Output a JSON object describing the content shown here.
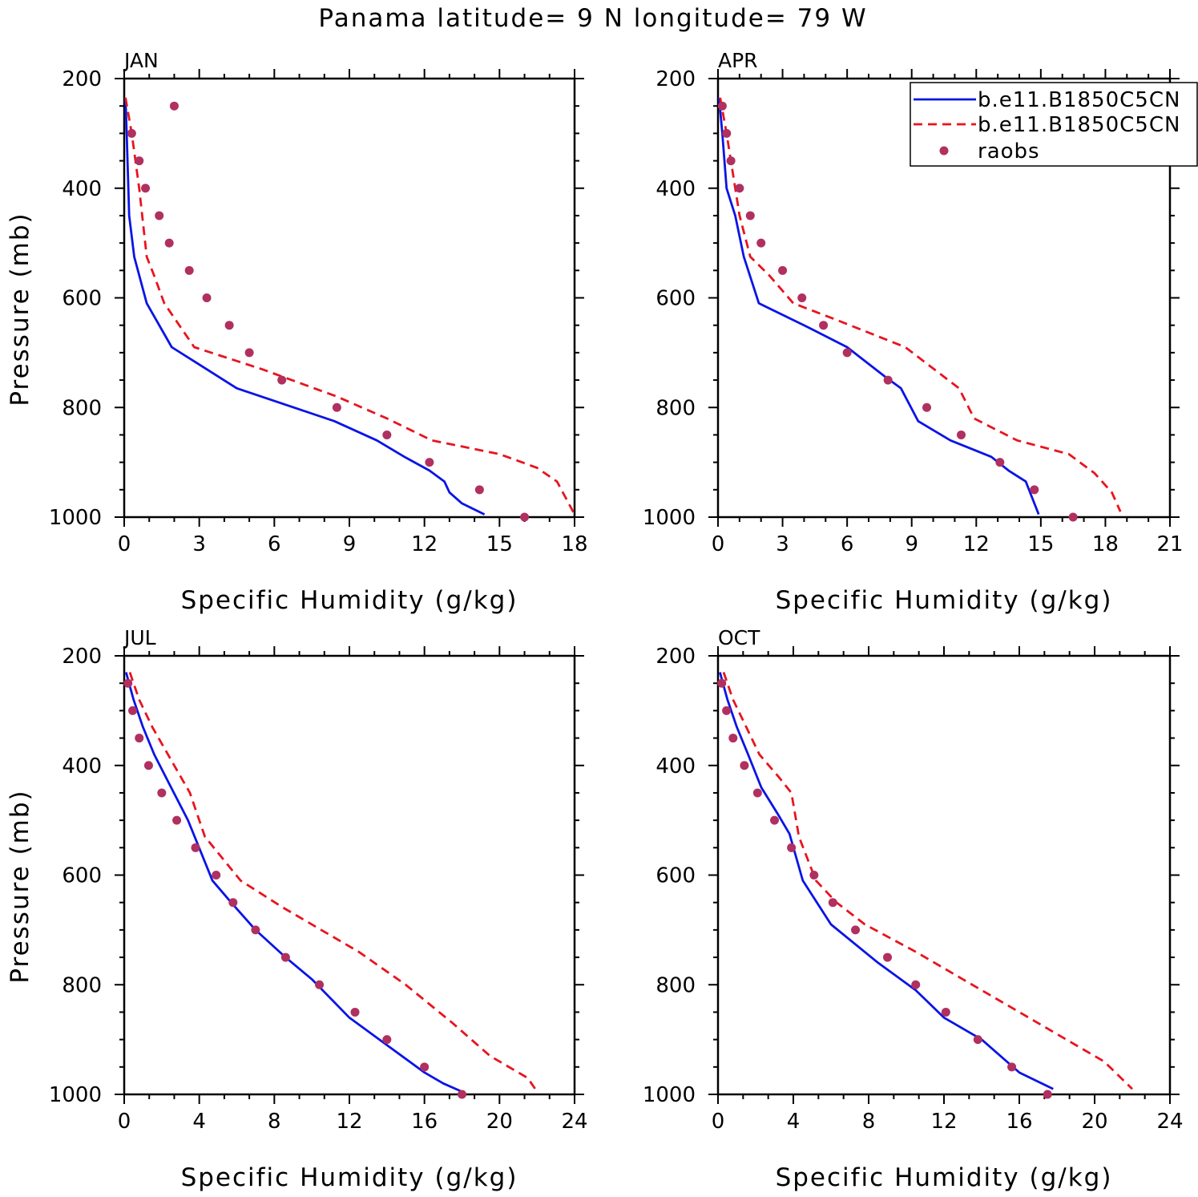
{
  "figure": {
    "title": "Panama  latitude= 9 N longitude= 79 W"
  },
  "legend": {
    "items": [
      {
        "label": "b.e11.B1850C5CN",
        "color": "#0a14e6",
        "style": "solid"
      },
      {
        "label": "b.e11.B1850C5CN",
        "color": "#e8141e",
        "style": "dashed"
      },
      {
        "label": "raobs",
        "color": "#b03060",
        "style": "marker"
      }
    ]
  },
  "chart_data": [
    {
      "type": "line",
      "panel_label": "JAN",
      "xlabel": "Specific Humidity (g/kg)",
      "ylabel": "Pressure (mb)",
      "xlim": [
        0,
        18
      ],
      "ylim": [
        1000,
        200
      ],
      "x_ticks": [
        0,
        3,
        6,
        9,
        12,
        15,
        18
      ],
      "y_ticks": [
        200,
        400,
        600,
        800,
        1000
      ],
      "series": [
        {
          "name": "b.e11.B1850C5CN",
          "color": "#0a14e6",
          "style": "solid",
          "x": [
            0.05,
            0.1,
            0.2,
            0.4,
            0.9,
            1.9,
            4.5,
            8.4,
            10.1,
            11.2,
            12.2,
            12.8,
            13.0,
            13.5,
            14.4
          ],
          "y": [
            235,
            300,
            450,
            525,
            610,
            690,
            765,
            825,
            860,
            890,
            915,
            935,
            955,
            975,
            995
          ]
        },
        {
          "name": "b.e11.B1850C5CN",
          "color": "#e8141e",
          "style": "dashed",
          "x": [
            0.05,
            0.3,
            0.6,
            0.9,
            1.2,
            1.6,
            2.8,
            5.5,
            8.5,
            10.5,
            12.3,
            15.0,
            16.5,
            17.3,
            18.0
          ],
          "y": [
            235,
            300,
            400,
            525,
            560,
            610,
            690,
            730,
            780,
            820,
            860,
            885,
            910,
            935,
            995
          ]
        },
        {
          "name": "raobs",
          "color": "#b03060",
          "style": "marker",
          "x": [
            2.0,
            0.3,
            0.6,
            0.85,
            1.4,
            1.8,
            2.6,
            3.3,
            4.2,
            5.0,
            6.3,
            8.5,
            10.5,
            12.2,
            14.2,
            16.0
          ],
          "y": [
            250,
            300,
            350,
            400,
            450,
            500,
            550,
            600,
            650,
            700,
            750,
            800,
            850,
            900,
            950,
            1000
          ]
        }
      ]
    },
    {
      "type": "line",
      "panel_label": "APR",
      "xlabel": "Specific Humidity (g/kg)",
      "ylabel": "",
      "xlim": [
        0,
        21
      ],
      "ylim": [
        1000,
        200
      ],
      "x_ticks": [
        0,
        3,
        6,
        9,
        12,
        15,
        18,
        21
      ],
      "y_ticks": [
        200,
        400,
        600,
        800,
        1000
      ],
      "series": [
        {
          "name": "b.e11.B1850C5CN",
          "color": "#0a14e6",
          "style": "solid",
          "x": [
            0.05,
            0.2,
            0.4,
            0.8,
            1.2,
            1.9,
            4.0,
            6.0,
            7.8,
            8.5,
            9.3,
            10.8,
            12.7,
            13.5,
            14.3,
            14.9
          ],
          "y": [
            235,
            300,
            400,
            450,
            525,
            610,
            650,
            690,
            745,
            765,
            825,
            860,
            890,
            915,
            935,
            995
          ]
        },
        {
          "name": "b.e11.B1850C5CN",
          "color": "#e8141e",
          "style": "dashed",
          "x": [
            0.1,
            0.4,
            0.6,
            1.0,
            1.5,
            2.4,
            3.5,
            5.5,
            8.7,
            11.2,
            11.9,
            13.9,
            16.3,
            17.5,
            18.3,
            18.7
          ],
          "y": [
            235,
            300,
            350,
            450,
            525,
            560,
            610,
            640,
            690,
            765,
            820,
            860,
            885,
            920,
            955,
            990
          ]
        },
        {
          "name": "raobs",
          "color": "#b03060",
          "style": "marker",
          "x": [
            0.2,
            0.4,
            0.6,
            1.0,
            1.5,
            2.0,
            3.0,
            3.9,
            4.9,
            6.0,
            7.9,
            9.7,
            11.3,
            13.1,
            14.7,
            16.5
          ],
          "y": [
            250,
            300,
            350,
            400,
            450,
            500,
            550,
            600,
            650,
            700,
            750,
            800,
            850,
            900,
            950,
            1000
          ]
        }
      ]
    },
    {
      "type": "line",
      "panel_label": "JUL",
      "xlabel": "Specific Humidity (g/kg)",
      "ylabel": "Pressure (mb)",
      "xlim": [
        0,
        24
      ],
      "ylim": [
        1000,
        200
      ],
      "x_ticks": [
        0,
        4,
        8,
        12,
        16,
        20,
        24
      ],
      "y_ticks": [
        200,
        400,
        600,
        800,
        1000
      ],
      "series": [
        {
          "name": "b.e11.B1850C5CN",
          "color": "#0a14e6",
          "style": "solid",
          "x": [
            0.1,
            0.5,
            1.0,
            1.6,
            2.5,
            3.4,
            4.7,
            5.7,
            7.0,
            8.6,
            10.0,
            12.0,
            14.0,
            16.0,
            17.0,
            18.0
          ],
          "y": [
            230,
            280,
            330,
            380,
            440,
            500,
            610,
            650,
            700,
            750,
            790,
            860,
            910,
            960,
            980,
            995
          ]
        },
        {
          "name": "b.e11.B1850C5CN",
          "color": "#e8141e",
          "style": "dashed",
          "x": [
            0.3,
            0.8,
            1.5,
            2.5,
            3.5,
            4.3,
            6.2,
            8.5,
            10.5,
            12.5,
            15.0,
            17.5,
            19.5,
            21.5,
            22.0
          ],
          "y": [
            230,
            280,
            330,
            390,
            450,
            530,
            610,
            660,
            700,
            740,
            800,
            870,
            930,
            970,
            995
          ]
        },
        {
          "name": "raobs",
          "color": "#b03060",
          "style": "marker",
          "x": [
            0.2,
            0.45,
            0.8,
            1.3,
            2.0,
            2.8,
            3.8,
            4.9,
            5.8,
            7.0,
            8.6,
            10.4,
            12.3,
            14.0,
            16.0,
            18.0
          ],
          "y": [
            250,
            300,
            350,
            400,
            450,
            500,
            550,
            600,
            650,
            700,
            750,
            800,
            850,
            900,
            950,
            1000
          ]
        }
      ]
    },
    {
      "type": "line",
      "panel_label": "OCT",
      "xlabel": "Specific Humidity (g/kg)",
      "ylabel": "",
      "xlim": [
        0,
        24
      ],
      "ylim": [
        1000,
        200
      ],
      "x_ticks": [
        0,
        4,
        8,
        12,
        16,
        20,
        24
      ],
      "y_ticks": [
        200,
        400,
        600,
        800,
        1000
      ],
      "series": [
        {
          "name": "b.e11.B1850C5CN",
          "color": "#0a14e6",
          "style": "solid",
          "x": [
            0.1,
            0.5,
            1.0,
            1.6,
            2.3,
            3.2,
            3.8,
            4.5,
            6.0,
            8.5,
            10.5,
            12.0,
            14.0,
            16.0,
            17.8
          ],
          "y": [
            230,
            280,
            330,
            380,
            440,
            490,
            525,
            610,
            690,
            760,
            810,
            860,
            900,
            960,
            990
          ]
        },
        {
          "name": "b.e11.B1850C5CN",
          "color": "#e8141e",
          "style": "dashed",
          "x": [
            0.3,
            0.8,
            1.5,
            2.2,
            3.2,
            3.9,
            4.3,
            5.2,
            6.3,
            7.8,
            10.5,
            13.0,
            15.5,
            18.0,
            20.5,
            22.0
          ],
          "y": [
            230,
            280,
            330,
            380,
            420,
            450,
            530,
            610,
            650,
            690,
            740,
            790,
            840,
            890,
            940,
            990
          ]
        },
        {
          "name": "raobs",
          "color": "#b03060",
          "style": "marker",
          "x": [
            0.2,
            0.45,
            0.8,
            1.4,
            2.1,
            3.0,
            3.9,
            5.1,
            6.1,
            7.3,
            9.0,
            10.5,
            12.1,
            13.8,
            15.6,
            17.5
          ],
          "y": [
            250,
            300,
            350,
            400,
            450,
            500,
            550,
            600,
            650,
            700,
            750,
            800,
            850,
            900,
            950,
            1000
          ]
        }
      ]
    }
  ]
}
